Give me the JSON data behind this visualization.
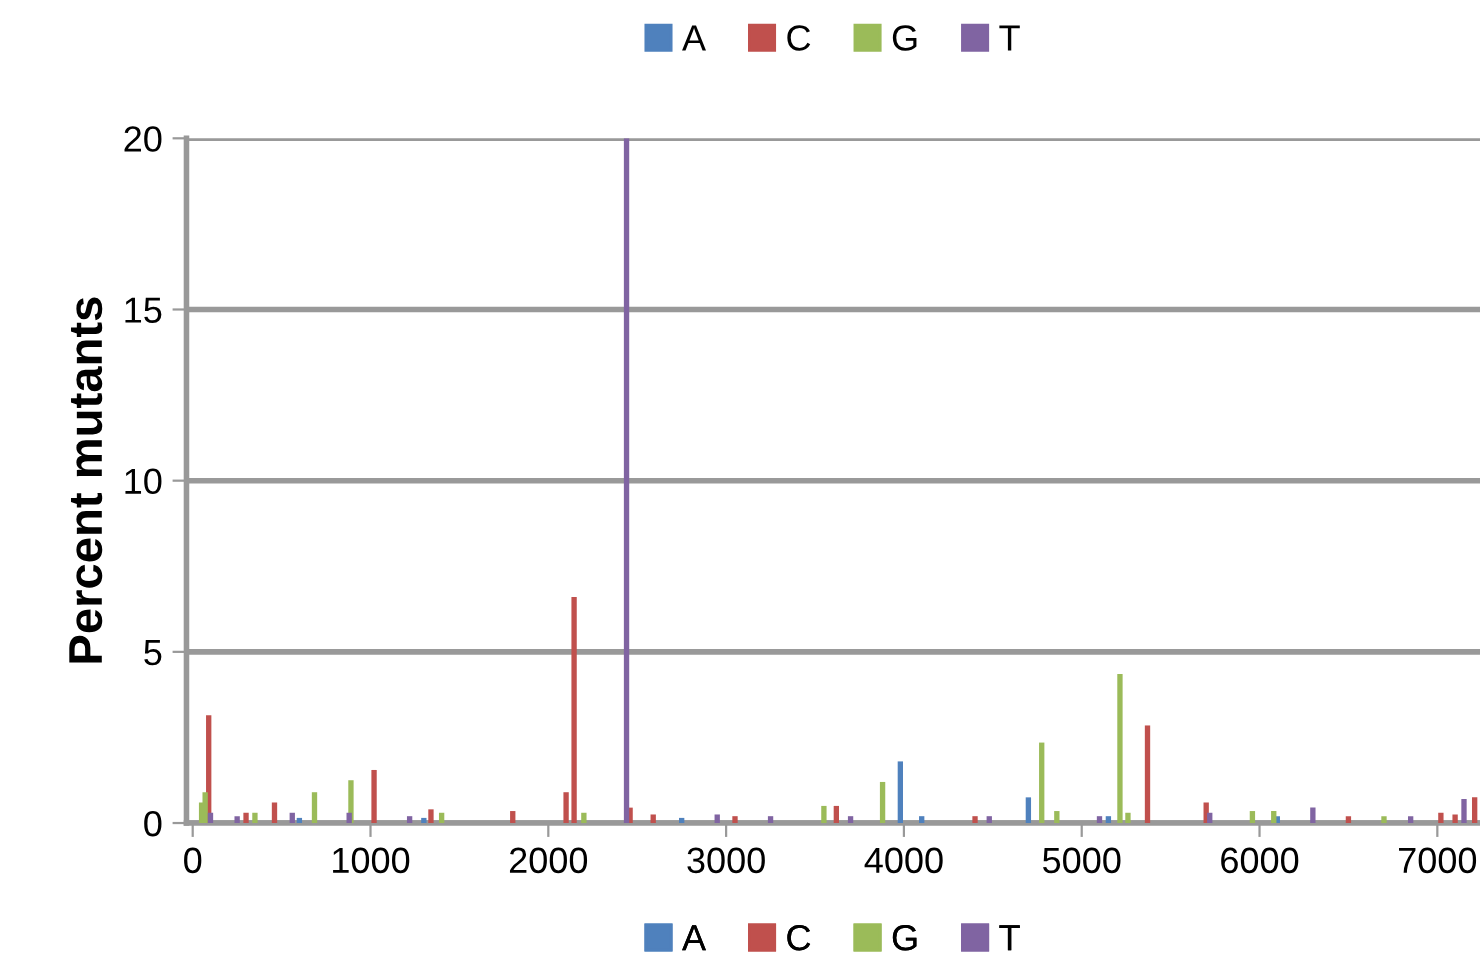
{
  "chart_data": {
    "type": "bar",
    "ylabel": "Percent mutants",
    "xlim": [
      -35,
      7240
    ],
    "ylim": [
      0,
      20
    ],
    "xticks": [
      0,
      1000,
      2000,
      3000,
      4000,
      5000,
      6000,
      7000
    ],
    "yticks": [
      0,
      5,
      10,
      15,
      20
    ],
    "grid": "y",
    "legend": [
      "top",
      "bottom"
    ],
    "series": [
      {
        "name": "A",
        "color": "#4f81bd",
        "x": [
          600,
          1300,
          2750,
          3980,
          4100,
          4700,
          5150,
          6100
        ],
        "values": [
          0.15,
          0.15,
          0.15,
          1.8,
          0.2,
          0.75,
          0.2,
          0.2
        ]
      },
      {
        "name": "C",
        "color": "#c0504d",
        "x": [
          90,
          300,
          460,
          1020,
          1340,
          1800,
          2100,
          2145,
          2460,
          2590,
          3050,
          3620,
          4400,
          5370,
          5700,
          6500,
          7020,
          7100,
          7210
        ],
        "values": [
          3.15,
          0.3,
          0.6,
          1.55,
          0.4,
          0.35,
          0.9,
          6.6,
          0.45,
          0.25,
          0.2,
          0.5,
          0.2,
          2.85,
          0.6,
          0.2,
          0.3,
          0.25,
          0.75
        ]
      },
      {
        "name": "G",
        "color": "#9bbb59",
        "x": [
          50,
          70,
          350,
          685,
          890,
          1400,
          2200,
          3550,
          3880,
          4775,
          4860,
          5215,
          5260,
          5960,
          6080,
          6700
        ],
        "values": [
          0.6,
          0.9,
          0.3,
          0.9,
          1.25,
          0.3,
          0.3,
          0.5,
          1.2,
          2.35,
          0.35,
          4.35,
          0.3,
          0.35,
          0.35,
          0.2
        ]
      },
      {
        "name": "T",
        "color": "#8064a2",
        "x": [
          100,
          250,
          560,
          880,
          1220,
          2440,
          2950,
          3250,
          3700,
          4480,
          5100,
          5720,
          6300,
          6850,
          7150
        ],
        "values": [
          0.3,
          0.2,
          0.3,
          0.3,
          0.2,
          20,
          0.25,
          0.2,
          0.2,
          0.2,
          0.2,
          0.3,
          0.45,
          0.2,
          0.7
        ]
      }
    ]
  }
}
